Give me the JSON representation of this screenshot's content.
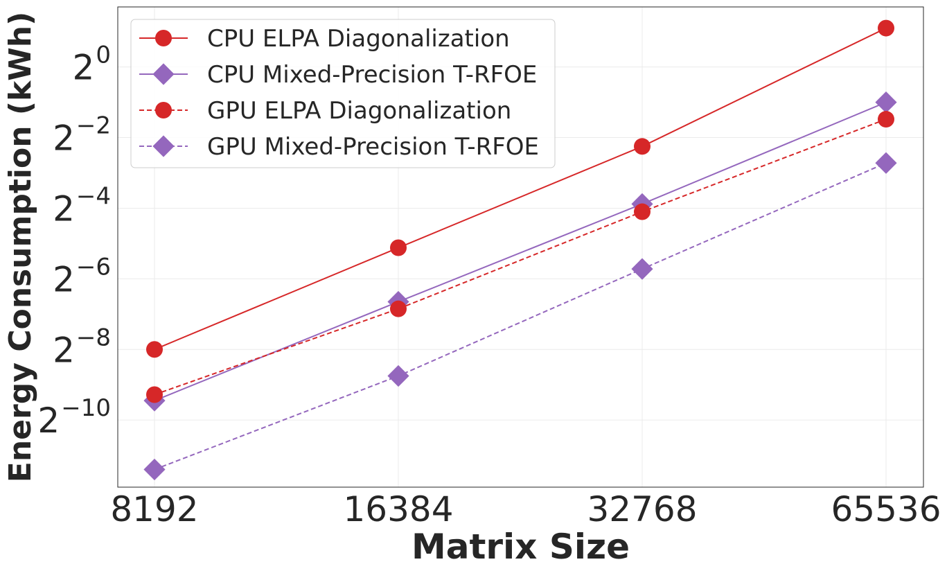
{
  "chart_data": {
    "type": "line",
    "title": "",
    "xlabel": "Matrix Size",
    "ylabel": "Energy Consumption (kWh)",
    "x_scale": "log2",
    "y_scale": "log2",
    "x": [
      8192,
      16384,
      32768,
      65536
    ],
    "x_tick_labels": [
      "8192",
      "16384",
      "32768",
      "65536"
    ],
    "y_ticks": [
      {
        "base": "2",
        "exp": "0",
        "value": 1
      },
      {
        "base": "2",
        "exp": "−2",
        "value": 0.25
      },
      {
        "base": "2",
        "exp": "−4",
        "value": 0.0625
      },
      {
        "base": "2",
        "exp": "−6",
        "value": 0.015625
      },
      {
        "base": "2",
        "exp": "−8",
        "value": 0.00390625
      },
      {
        "base": "2",
        "exp": "−10",
        "value": 0.0009765625
      }
    ],
    "ylim_log2": [
      -11.9,
      1.7
    ],
    "grid": true,
    "legend_position": "top-left",
    "series": [
      {
        "name": "CPU ELPA Diagonalization",
        "color": "#d62728",
        "marker": "circle",
        "linestyle": "solid",
        "values_log2": [
          -8.0,
          -5.12,
          -2.25,
          1.1
        ]
      },
      {
        "name": "CPU Mixed-Precision T-RFOE",
        "color": "#9467bd",
        "marker": "diamond",
        "linestyle": "solid",
        "values_log2": [
          -9.45,
          -6.65,
          -3.88,
          -1.0
        ]
      },
      {
        "name": "GPU ELPA Diagonalization",
        "color": "#d62728",
        "marker": "circle",
        "linestyle": "dashed",
        "values_log2": [
          -9.28,
          -6.85,
          -4.1,
          -1.48
        ]
      },
      {
        "name": "GPU Mixed-Precision T-RFOE",
        "color": "#9467bd",
        "marker": "diamond",
        "linestyle": "dashed",
        "values_log2": [
          -11.4,
          -8.75,
          -5.72,
          -2.72
        ]
      }
    ]
  }
}
